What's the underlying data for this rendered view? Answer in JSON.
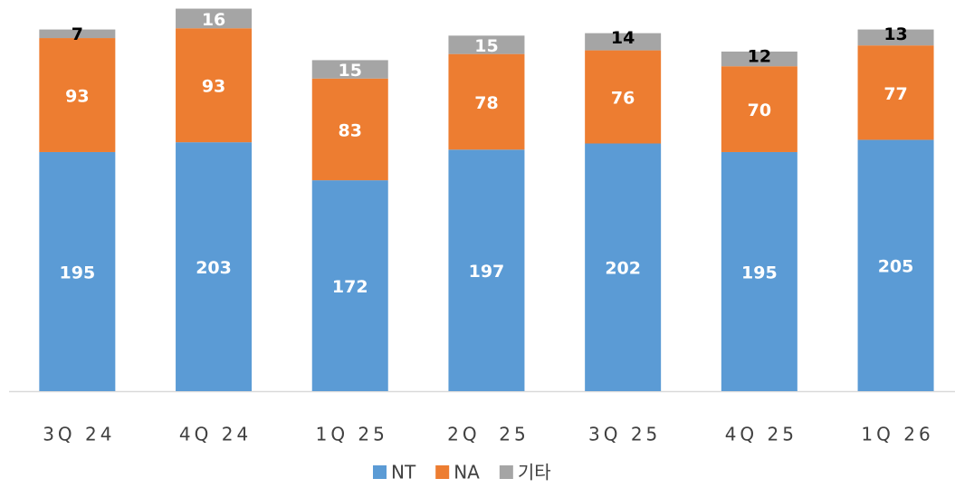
{
  "chart_data": {
    "type": "stacked_bar",
    "categories": [
      "3Q 24",
      "4Q 24",
      "1Q 25",
      "2Q  25",
      "3Q 25",
      "4Q 25",
      "1Q 26"
    ],
    "series": [
      {
        "name": "NT",
        "color": "#5b9bd5",
        "values": [
          195,
          203,
          172,
          197,
          202,
          195,
          205
        ]
      },
      {
        "name": "NA",
        "color": "#ed7d31",
        "values": [
          93,
          93,
          83,
          78,
          76,
          70,
          77
        ]
      },
      {
        "name": "기타",
        "color": "#a5a5a5",
        "values": [
          7,
          16,
          15,
          15,
          14,
          12,
          13
        ]
      }
    ],
    "legend": "bottom"
  }
}
